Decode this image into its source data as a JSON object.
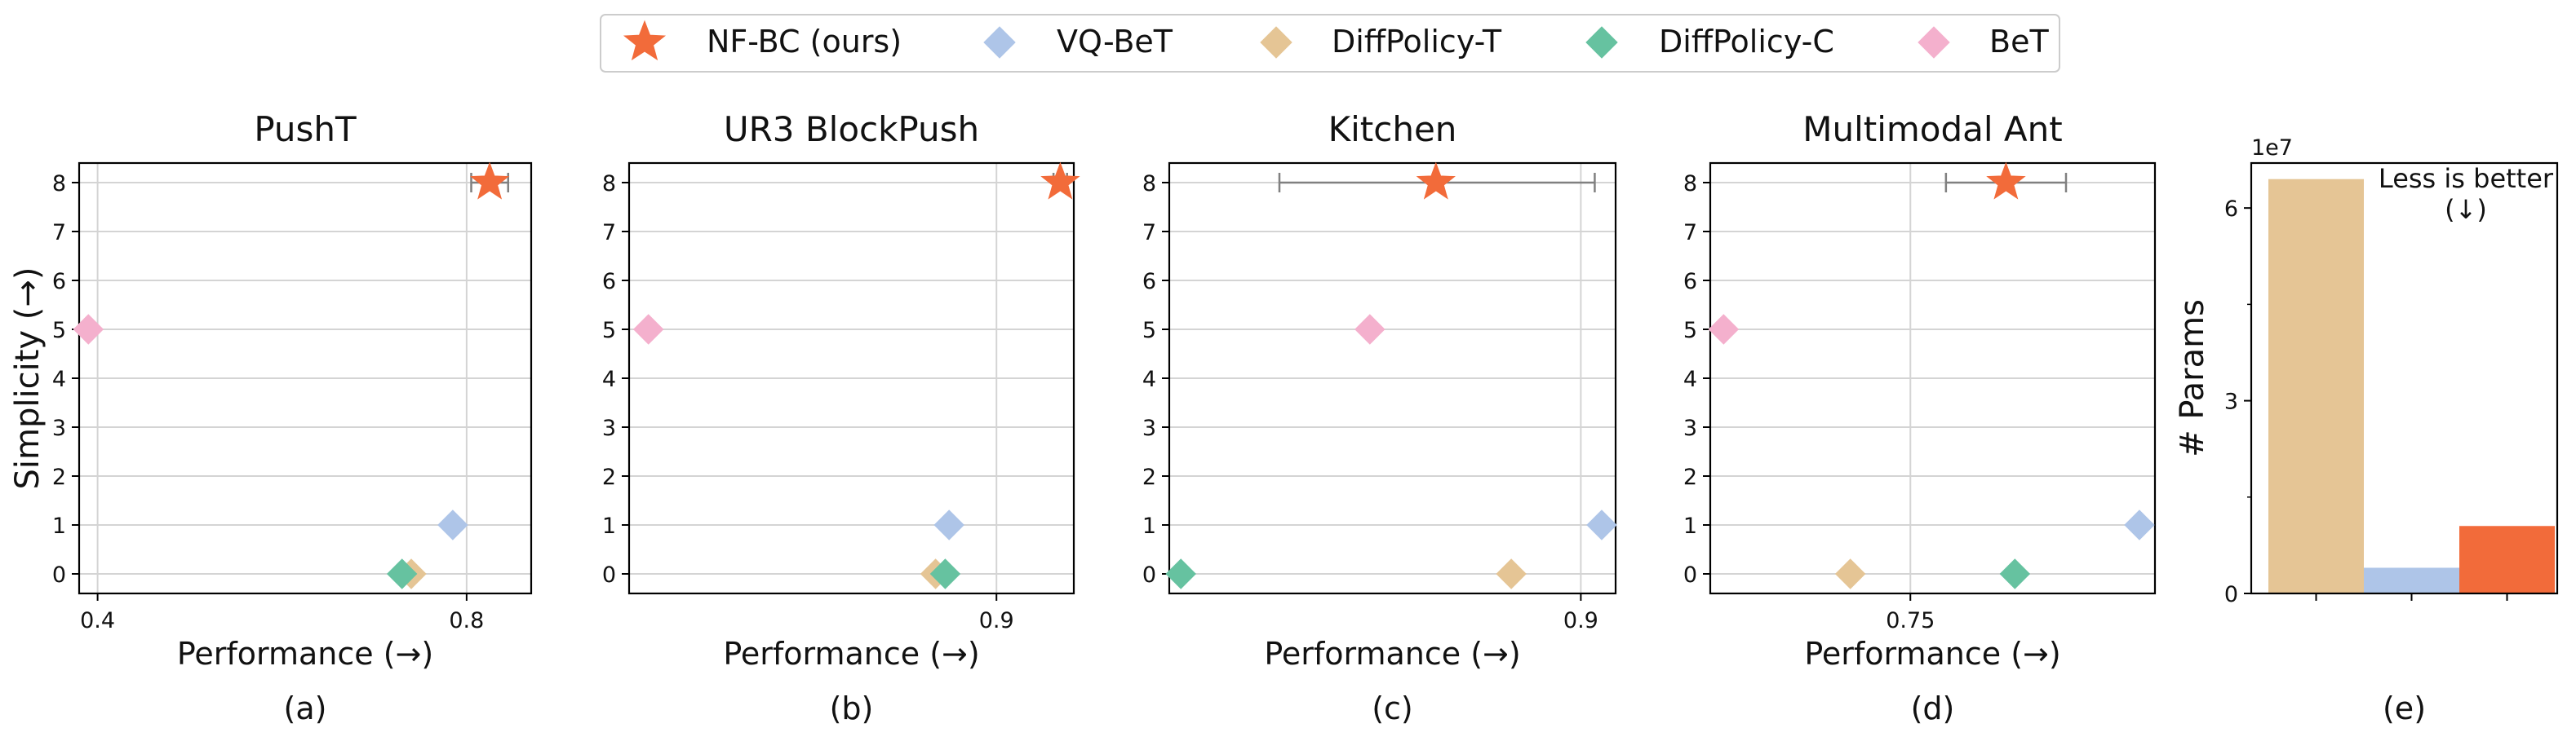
{
  "legend": {
    "entries": [
      {
        "name": "NF-BC (ours)",
        "marker": "star",
        "color": "#f26b3a"
      },
      {
        "name": "VQ-BeT",
        "marker": "diamond",
        "color": "#aec5e8"
      },
      {
        "name": "DiffPolicy-T",
        "marker": "diamond",
        "color": "#e5c595"
      },
      {
        "name": "DiffPolicy-C",
        "marker": "diamond",
        "color": "#66c2a0"
      },
      {
        "name": "BeT",
        "marker": "diamond",
        "color": "#f4b0cd"
      }
    ]
  },
  "chart_data": [
    {
      "type": "scatter",
      "title": "PushT",
      "caption": "(a)",
      "xlabel": "Performance (→)",
      "ylabel": "Simplicity (→)",
      "xlim": [
        0.38,
        0.87
      ],
      "ylim": [
        -0.4,
        8.4
      ],
      "xticks": [
        0.4,
        0.8
      ],
      "xticklabels": [
        "0.4",
        "0.8"
      ],
      "yticks": [
        0,
        1,
        2,
        3,
        4,
        5,
        6,
        7,
        8
      ],
      "grid": true,
      "points": [
        {
          "series": "NF-BC (ours)",
          "x": 0.825,
          "y": 8,
          "xerr": [
            0.805,
            0.845
          ]
        },
        {
          "series": "VQ-BeT",
          "x": 0.785,
          "y": 1
        },
        {
          "series": "DiffPolicy-T",
          "x": 0.74,
          "y": 0
        },
        {
          "series": "DiffPolicy-C",
          "x": 0.73,
          "y": 0
        },
        {
          "series": "BeT",
          "x": 0.39,
          "y": 5
        }
      ]
    },
    {
      "type": "scatter",
      "title": "UR3 BlockPush",
      "caption": "(b)",
      "xlabel": "Performance (→)",
      "ylabel": "",
      "xlim": [
        0.862,
        0.908
      ],
      "ylim": [
        -0.4,
        8.4
      ],
      "xticks": [
        0.9
      ],
      "xticklabels": [
        "0.9"
      ],
      "yticks": [
        0,
        1,
        2,
        3,
        4,
        5,
        6,
        7,
        8
      ],
      "grid": true,
      "points": [
        {
          "series": "NF-BC (ours)",
          "x": 0.9066,
          "y": 8,
          "xerr": [
            0.9059,
            0.9073
          ]
        },
        {
          "series": "VQ-BeT",
          "x": 0.8951,
          "y": 1
        },
        {
          "series": "DiffPolicy-T",
          "x": 0.8937,
          "y": 0
        },
        {
          "series": "DiffPolicy-C",
          "x": 0.8947,
          "y": 0
        },
        {
          "series": "BeT",
          "x": 0.864,
          "y": 5
        }
      ]
    },
    {
      "type": "scatter",
      "title": "Kitchen",
      "caption": "(c)",
      "xlabel": "Performance (→)",
      "ylabel": "",
      "xlim": [
        0.545,
        0.93
      ],
      "ylim": [
        -0.4,
        8.4
      ],
      "xticks": [
        0.9
      ],
      "xticklabels": [
        "0.9"
      ],
      "yticks": [
        0,
        1,
        2,
        3,
        4,
        5,
        6,
        7,
        8
      ],
      "grid": true,
      "points": [
        {
          "series": "NF-BC (ours)",
          "x": 0.775,
          "y": 8,
          "xerr": [
            0.64,
            0.912
          ]
        },
        {
          "series": "VQ-BeT",
          "x": 0.918,
          "y": 1
        },
        {
          "series": "DiffPolicy-T",
          "x": 0.84,
          "y": 0
        },
        {
          "series": "DiffPolicy-C",
          "x": 0.555,
          "y": 0
        },
        {
          "series": "BeT",
          "x": 0.718,
          "y": 5
        }
      ]
    },
    {
      "type": "scatter",
      "title": "Multimodal Ant",
      "caption": "(d)",
      "xlabel": "Performance (→)",
      "ylabel": "",
      "xlim": [
        0.705,
        0.805
      ],
      "ylim": [
        -0.4,
        8.4
      ],
      "xticks": [
        0.75
      ],
      "xticklabels": [
        "0.75"
      ],
      "yticks": [
        0,
        1,
        2,
        3,
        4,
        5,
        6,
        7,
        8
      ],
      "grid": true,
      "points": [
        {
          "series": "NF-BC (ours)",
          "x": 0.7715,
          "y": 8,
          "xerr": [
            0.758,
            0.785
          ]
        },
        {
          "series": "VQ-BeT",
          "x": 0.8015,
          "y": 1
        },
        {
          "series": "DiffPolicy-T",
          "x": 0.7365,
          "y": 0
        },
        {
          "series": "DiffPolicy-C",
          "x": 0.7735,
          "y": 0
        },
        {
          "series": "BeT",
          "x": 0.708,
          "y": 5
        }
      ]
    },
    {
      "type": "bar",
      "title": "",
      "caption": "(e)",
      "xlabel": "",
      "ylabel": "# Params",
      "ylim": [
        0,
        67000000
      ],
      "yticks": [
        0,
        30000000,
        60000000
      ],
      "yticklabels": [
        "0",
        "3",
        "6"
      ],
      "offset_text": "1e7",
      "annotation": [
        "Less is better",
        "(↓)"
      ],
      "categories": [
        "DiffPolicy-T",
        "VQ-BeT",
        "NF-BC (ours)"
      ],
      "values": [
        64500000,
        4000000,
        10500000
      ],
      "colors": [
        "#e5c595",
        "#aec5e8",
        "#f26b3a"
      ]
    }
  ]
}
